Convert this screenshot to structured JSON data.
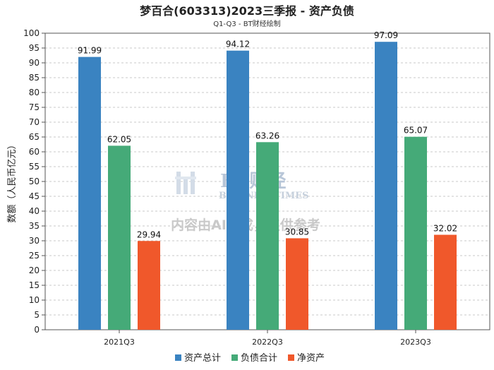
{
  "chart_data": {
    "type": "bar",
    "title": "梦百合(603313)2023三季报 - 资产负债",
    "subtitle": "Q1-Q3 - BT财经绘制",
    "xlabel": "",
    "ylabel": "数额（人民币亿元）",
    "ylim": [
      0,
      100
    ],
    "yticks": [
      0,
      5,
      10,
      15,
      20,
      25,
      30,
      35,
      40,
      45,
      50,
      55,
      60,
      65,
      70,
      75,
      80,
      85,
      90,
      95,
      100
    ],
    "grid": true,
    "legend_position": "bottom",
    "categories": [
      "2021Q3",
      "2022Q3",
      "2023Q3"
    ],
    "series": [
      {
        "name": "资产总计",
        "color": "#3a83c1",
        "values": [
          91.99,
          94.12,
          97.09
        ],
        "labels": [
          "91.99",
          "94.12",
          "97.09"
        ]
      },
      {
        "name": "负债合计",
        "color": "#45aa78",
        "values": [
          62.05,
          63.26,
          65.07
        ],
        "labels": [
          "62.05",
          "63.26",
          "65.07"
        ]
      },
      {
        "name": "净资产",
        "color": "#f0582b",
        "values": [
          29.94,
          30.85,
          32.02
        ],
        "labels": [
          "29.94",
          "30.85",
          "32.02"
        ]
      }
    ]
  },
  "watermark": {
    "brand": "BT财经",
    "brand_en": "BUSINESSTIMES",
    "note": "内容由AI生成，仅供参考"
  }
}
